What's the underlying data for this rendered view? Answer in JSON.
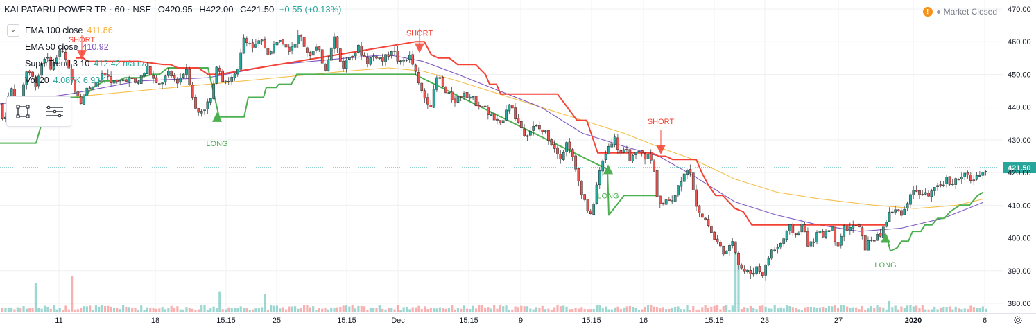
{
  "header": {
    "symbol": "KALPATARU POWER TR · 60 · NSE",
    "o_label": "O",
    "o": "420.95",
    "h_label": "H",
    "h": "422.00",
    "c_label": "C",
    "c": "421.50",
    "change": "+0.55 (+0.13%)"
  },
  "legend": [
    {
      "name": "EMA 100 close",
      "value": "411.86",
      "color": "#f5a623"
    },
    {
      "name": "EMA 50 close",
      "value": "410.92",
      "color": "#7e57c2"
    },
    {
      "name": "SuperTrend 3 10",
      "value": "412.42  n/a  n/a",
      "color": "#26a69a"
    },
    {
      "name": "Vol 20",
      "value": "4.087K  6.93K",
      "color": "#26a69a",
      "value2color": "#f5a623"
    }
  ],
  "market_status": "Market Closed",
  "colors": {
    "up": "#26a69a",
    "down": "#ef5350",
    "ema100": "#f5c04a",
    "ema50": "#7e57c2",
    "st_up": "#4caf50",
    "st_down": "#f44336",
    "grid": "#eef0f3",
    "price_tag": "#26a69a"
  },
  "icons": {
    "collapse": "chevron-down-icon",
    "rect": "rectangle-tool-icon",
    "menu": "menu-lines-icon",
    "warn": "warning-icon",
    "settings": "gear-icon"
  },
  "chart_data": {
    "type": "candlestick",
    "y_ticks": [
      380,
      390,
      400,
      410,
      420,
      430,
      440,
      450,
      460,
      470
    ],
    "y_tick_labels": [
      "380.00",
      "390.00",
      "400.00",
      "410.00",
      "420.00",
      "430.00",
      "440.00",
      "450.00",
      "460.00",
      "470.00"
    ],
    "ylim": [
      376.8,
      472.5
    ],
    "x_labels": [
      "11",
      "18",
      "15:15",
      "25",
      "15:15",
      "Dec",
      "15:15",
      "9",
      "15:15",
      "16",
      "15:15",
      "23",
      "27",
      "2020",
      "6"
    ],
    "x_label_bold": [
      "2020"
    ],
    "last_price": 421.5,
    "last_price_label": "421.50",
    "price_path": [
      [
        0,
        441
      ],
      [
        8,
        435
      ],
      [
        18,
        446
      ],
      [
        30,
        440
      ],
      [
        42,
        452
      ],
      [
        55,
        447
      ],
      [
        66,
        456
      ],
      [
        78,
        452
      ],
      [
        90,
        458
      ],
      [
        98,
        454
      ],
      [
        108,
        447
      ],
      [
        120,
        442
      ],
      [
        130,
        446
      ],
      [
        142,
        448
      ],
      [
        155,
        450
      ],
      [
        170,
        447
      ],
      [
        185,
        449
      ],
      [
        200,
        447
      ],
      [
        215,
        452
      ],
      [
        230,
        446
      ],
      [
        245,
        450
      ],
      [
        260,
        448
      ],
      [
        272,
        452
      ],
      [
        286,
        438
      ],
      [
        298,
        440
      ],
      [
        306,
        442
      ],
      [
        312,
        447
      ],
      [
        316,
        455
      ],
      [
        322,
        449
      ],
      [
        332,
        448
      ],
      [
        345,
        450
      ],
      [
        355,
        462
      ],
      [
        368,
        458
      ],
      [
        380,
        460
      ],
      [
        392,
        456
      ],
      [
        405,
        462
      ],
      [
        420,
        458
      ],
      [
        435,
        462
      ],
      [
        448,
        456
      ],
      [
        460,
        458
      ],
      [
        472,
        452
      ],
      [
        484,
        462
      ],
      [
        496,
        452
      ],
      [
        508,
        456
      ],
      [
        520,
        458
      ],
      [
        532,
        454
      ],
      [
        545,
        456
      ],
      [
        556,
        454
      ],
      [
        568,
        458
      ],
      [
        580,
        453
      ],
      [
        592,
        456
      ],
      [
        600,
        452
      ],
      [
        606,
        447
      ],
      [
        615,
        443
      ],
      [
        625,
        441
      ],
      [
        634,
        450
      ],
      [
        646,
        444
      ],
      [
        660,
        442
      ],
      [
        672,
        445
      ],
      [
        686,
        442
      ],
      [
        700,
        440
      ],
      [
        712,
        437
      ],
      [
        724,
        434
      ],
      [
        736,
        442
      ],
      [
        748,
        436
      ],
      [
        760,
        432
      ],
      [
        775,
        434
      ],
      [
        790,
        432
      ],
      [
        802,
        428
      ],
      [
        812,
        425
      ],
      [
        822,
        430
      ],
      [
        832,
        421
      ],
      [
        845,
        412
      ],
      [
        855,
        406
      ],
      [
        862,
        415
      ],
      [
        870,
        422
      ],
      [
        878,
        427
      ],
      [
        888,
        431
      ],
      [
        897,
        426
      ],
      [
        906,
        426
      ],
      [
        914,
        424
      ],
      [
        924,
        426
      ],
      [
        932,
        425
      ],
      [
        940,
        425
      ],
      [
        946,
        420
      ],
      [
        952,
        411
      ],
      [
        960,
        410
      ],
      [
        970,
        412
      ],
      [
        978,
        414
      ],
      [
        988,
        420
      ],
      [
        996,
        422
      ],
      [
        1004,
        412
      ],
      [
        1012,
        408
      ],
      [
        1022,
        405
      ],
      [
        1032,
        400
      ],
      [
        1042,
        397
      ],
      [
        1052,
        395
      ],
      [
        1060,
        400
      ],
      [
        1068,
        392
      ],
      [
        1076,
        390
      ],
      [
        1084,
        389
      ],
      [
        1094,
        391
      ],
      [
        1104,
        389
      ],
      [
        1114,
        396
      ],
      [
        1124,
        397
      ],
      [
        1134,
        400
      ],
      [
        1142,
        403
      ],
      [
        1150,
        401
      ],
      [
        1160,
        404
      ],
      [
        1170,
        397
      ],
      [
        1180,
        401
      ],
      [
        1190,
        401
      ],
      [
        1200,
        404
      ],
      [
        1210,
        398
      ],
      [
        1220,
        403
      ],
      [
        1230,
        403
      ],
      [
        1240,
        404
      ],
      [
        1250,
        397
      ],
      [
        1260,
        400
      ],
      [
        1270,
        400
      ],
      [
        1278,
        404
      ],
      [
        1286,
        408
      ],
      [
        1296,
        408
      ],
      [
        1306,
        408
      ],
      [
        1316,
        414
      ],
      [
        1326,
        414
      ],
      [
        1336,
        413
      ],
      [
        1346,
        414
      ],
      [
        1356,
        415
      ],
      [
        1366,
        418
      ],
      [
        1376,
        417
      ],
      [
        1386,
        418
      ],
      [
        1396,
        419
      ],
      [
        1404,
        418
      ],
      [
        1412,
        418
      ],
      [
        1418,
        421
      ]
    ],
    "ema100_path": [
      [
        0,
        441
      ],
      [
        100,
        443
      ],
      [
        200,
        445
      ],
      [
        300,
        447
      ],
      [
        400,
        449
      ],
      [
        500,
        451
      ],
      [
        560,
        452
      ],
      [
        610,
        451
      ],
      [
        660,
        448
      ],
      [
        720,
        444
      ],
      [
        780,
        440
      ],
      [
        840,
        436
      ],
      [
        900,
        432
      ],
      [
        960,
        427
      ],
      [
        1000,
        424
      ],
      [
        1060,
        418
      ],
      [
        1120,
        414
      ],
      [
        1180,
        412
      ],
      [
        1260,
        410
      ],
      [
        1320,
        409
      ],
      [
        1380,
        410
      ],
      [
        1418,
        411.9
      ]
    ],
    "ema50_path": [
      [
        0,
        441
      ],
      [
        100,
        444
      ],
      [
        200,
        448
      ],
      [
        300,
        449
      ],
      [
        400,
        453
      ],
      [
        500,
        455
      ],
      [
        560,
        456
      ],
      [
        610,
        454
      ],
      [
        660,
        450
      ],
      [
        720,
        445
      ],
      [
        780,
        440
      ],
      [
        840,
        432
      ],
      [
        900,
        428
      ],
      [
        950,
        425
      ],
      [
        1000,
        419
      ],
      [
        1060,
        411
      ],
      [
        1120,
        407
      ],
      [
        1180,
        404
      ],
      [
        1240,
        402
      ],
      [
        1300,
        403
      ],
      [
        1360,
        406
      ],
      [
        1418,
        410.9
      ]
    ],
    "supertrend_up_path": [
      [
        0,
        429
      ],
      [
        52,
        429
      ],
      [
        60,
        435
      ],
      [
        75,
        437
      ],
      [
        88,
        436
      ],
      [
        98,
        443
      ],
      [
        120,
        443
      ],
      [
        135,
        446
      ],
      [
        150,
        448
      ],
      [
        170,
        448
      ],
      [
        180,
        449
      ],
      [
        200,
        449
      ],
      [
        220,
        450
      ],
      [
        230,
        450
      ],
      [
        242,
        452
      ],
      [
        300,
        452
      ],
      [
        316,
        437
      ],
      [
        352,
        437
      ],
      [
        358,
        443
      ],
      [
        380,
        443
      ],
      [
        384,
        446
      ],
      [
        398,
        446
      ],
      [
        402,
        447
      ],
      [
        420,
        447
      ],
      [
        428,
        450
      ],
      [
        598,
        450
      ],
      [
        876,
        421
      ],
      [
        878,
        407
      ],
      [
        900,
        413
      ],
      [
        946,
        413
      ]
    ],
    "supertrend_up_path2": [
      [
        1278,
        401
      ],
      [
        1284,
        396
      ],
      [
        1294,
        397
      ],
      [
        1300,
        399
      ],
      [
        1310,
        399
      ],
      [
        1316,
        402
      ],
      [
        1328,
        402
      ],
      [
        1334,
        404
      ],
      [
        1344,
        404
      ],
      [
        1352,
        406
      ],
      [
        1362,
        406
      ],
      [
        1370,
        408
      ],
      [
        1384,
        410
      ],
      [
        1398,
        410
      ],
      [
        1410,
        413
      ],
      [
        1418,
        414
      ]
    ],
    "supertrend_down_path": [
      [
        110,
        455
      ],
      [
        120,
        455
      ],
      [
        126,
        454
      ],
      [
        150,
        454
      ],
      [
        200,
        454
      ],
      [
        236,
        453
      ],
      [
        246,
        453
      ],
      [
        256,
        452
      ],
      [
        286,
        452
      ],
      [
        300,
        450
      ],
      [
        316,
        450
      ],
      [
        600,
        460
      ],
      [
        612,
        460
      ],
      [
        622,
        456
      ],
      [
        632,
        455
      ],
      [
        648,
        455
      ],
      [
        660,
        453
      ],
      [
        686,
        453
      ],
      [
        700,
        450
      ],
      [
        706,
        447
      ],
      [
        716,
        447
      ],
      [
        722,
        444
      ],
      [
        804,
        444
      ],
      [
        832,
        436
      ],
      [
        846,
        436
      ],
      [
        862,
        426
      ],
      [
        900,
        426
      ],
      [
        940,
        426
      ],
      [
        950,
        425
      ],
      [
        960,
        425
      ],
      [
        970,
        424
      ],
      [
        1004,
        424
      ],
      [
        1012,
        420
      ],
      [
        1022,
        416
      ],
      [
        1032,
        413
      ],
      [
        1042,
        413
      ],
      [
        1060,
        409
      ],
      [
        1072,
        408
      ],
      [
        1084,
        404
      ],
      [
        1276,
        404
      ]
    ],
    "signals": [
      {
        "type": "LONG",
        "x": 313,
        "y": 437,
        "label_y": 431
      },
      {
        "type": "SHORT",
        "x": 118,
        "y": 456,
        "label_y": 459
      },
      {
        "type": "SHORT",
        "x": 605,
        "y": 458,
        "label_y": 461
      },
      {
        "type": "LONG",
        "x": 877,
        "y": 421,
        "label_y": 415
      },
      {
        "type": "SHORT",
        "x": 953,
        "y": 427,
        "label_y": 434
      },
      {
        "type": "LONG",
        "x": 1277,
        "y": 400,
        "label_y": 394
      }
    ],
    "signal_text": {
      "long": "LONG",
      "short": "SHORT"
    },
    "volume_spikes": [
      {
        "x": 46,
        "h": 0.45,
        "up": true
      },
      {
        "x": 100,
        "h": 0.55,
        "up": false
      },
      {
        "x": 315,
        "h": 0.32,
        "up": true
      },
      {
        "x": 380,
        "h": 0.28,
        "up": true
      },
      {
        "x": 1056,
        "h": 0.98,
        "up": true
      },
      {
        "x": 1060,
        "h": 0.78,
        "up": true
      },
      {
        "x": 1278,
        "h": 0.18,
        "up": true
      }
    ]
  }
}
